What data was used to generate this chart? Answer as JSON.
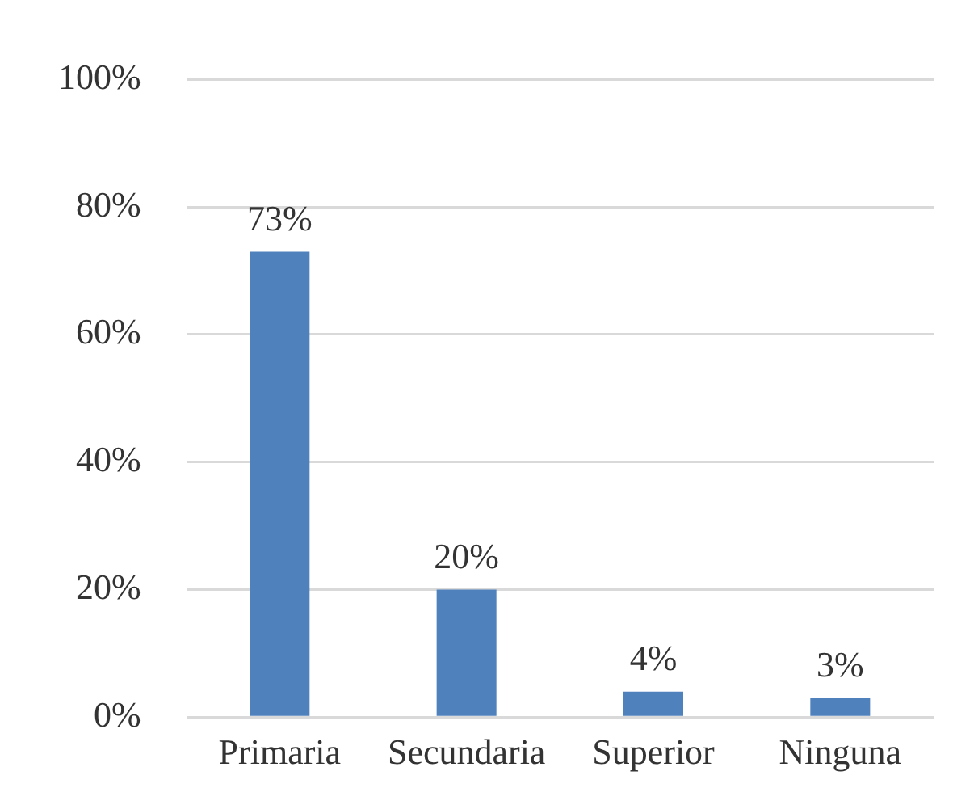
{
  "chart_data": {
    "type": "bar",
    "categories": [
      "Primaria",
      "Secundaria",
      "Superior",
      "Ninguna"
    ],
    "values": [
      73,
      20,
      4,
      3
    ],
    "value_labels": [
      "73%",
      "20%",
      "4%",
      "3%"
    ],
    "color": "#4f81bd",
    "ylim": [
      0,
      100
    ],
    "yticks": [
      {
        "value": 0,
        "label": "0%"
      },
      {
        "value": 20,
        "label": "20%"
      },
      {
        "value": 40,
        "label": "40%"
      },
      {
        "value": 60,
        "label": "60%"
      },
      {
        "value": 80,
        "label": "80%"
      },
      {
        "value": 100,
        "label": "100%"
      }
    ],
    "grid": "y",
    "legend": false
  }
}
